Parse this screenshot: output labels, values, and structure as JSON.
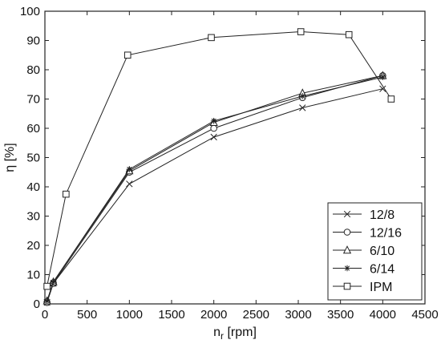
{
  "chart_data": {
    "type": "line",
    "title": "",
    "xlabel": "n",
    "xlabel_sub": "r",
    "xlabel_unit": " [rpm]",
    "ylabel": "η [%]",
    "xlim": [
      0,
      4500
    ],
    "ylim": [
      0,
      100
    ],
    "xticks": [
      0,
      500,
      1000,
      1500,
      2000,
      2500,
      3000,
      3500,
      4000,
      4500
    ],
    "yticks": [
      0,
      10,
      20,
      30,
      40,
      50,
      60,
      70,
      80,
      90,
      100
    ],
    "grid": false,
    "legend_position": "bottom-right",
    "series": [
      {
        "name": "12/8",
        "marker": "x",
        "points": [
          [
            25,
            0.5
          ],
          [
            100,
            7
          ],
          [
            1000,
            41
          ],
          [
            2000,
            57
          ],
          [
            3050,
            67
          ],
          [
            4000,
            73.5
          ]
        ]
      },
      {
        "name": "12/16",
        "marker": "circle",
        "points": [
          [
            25,
            0.5
          ],
          [
            100,
            7
          ],
          [
            1000,
            45
          ],
          [
            2000,
            60
          ],
          [
            3050,
            70.5
          ],
          [
            4000,
            78
          ]
        ]
      },
      {
        "name": "6/10",
        "marker": "triangle",
        "points": [
          [
            25,
            1
          ],
          [
            100,
            7.5
          ],
          [
            1000,
            45.5
          ],
          [
            2000,
            62
          ],
          [
            3050,
            72
          ],
          [
            4000,
            78
          ]
        ]
      },
      {
        "name": "6/14",
        "marker": "star",
        "points": [
          [
            25,
            1
          ],
          [
            100,
            7.5
          ],
          [
            1000,
            46
          ],
          [
            2000,
            62.5
          ],
          [
            3050,
            71
          ],
          [
            4000,
            77.5
          ]
        ]
      },
      {
        "name": "IPM",
        "marker": "square",
        "points": [
          [
            25,
            6
          ],
          [
            250,
            37.5
          ],
          [
            980,
            85
          ],
          [
            1970,
            91
          ],
          [
            3030,
            93
          ],
          [
            3600,
            92
          ],
          [
            4100,
            70
          ]
        ]
      }
    ]
  }
}
